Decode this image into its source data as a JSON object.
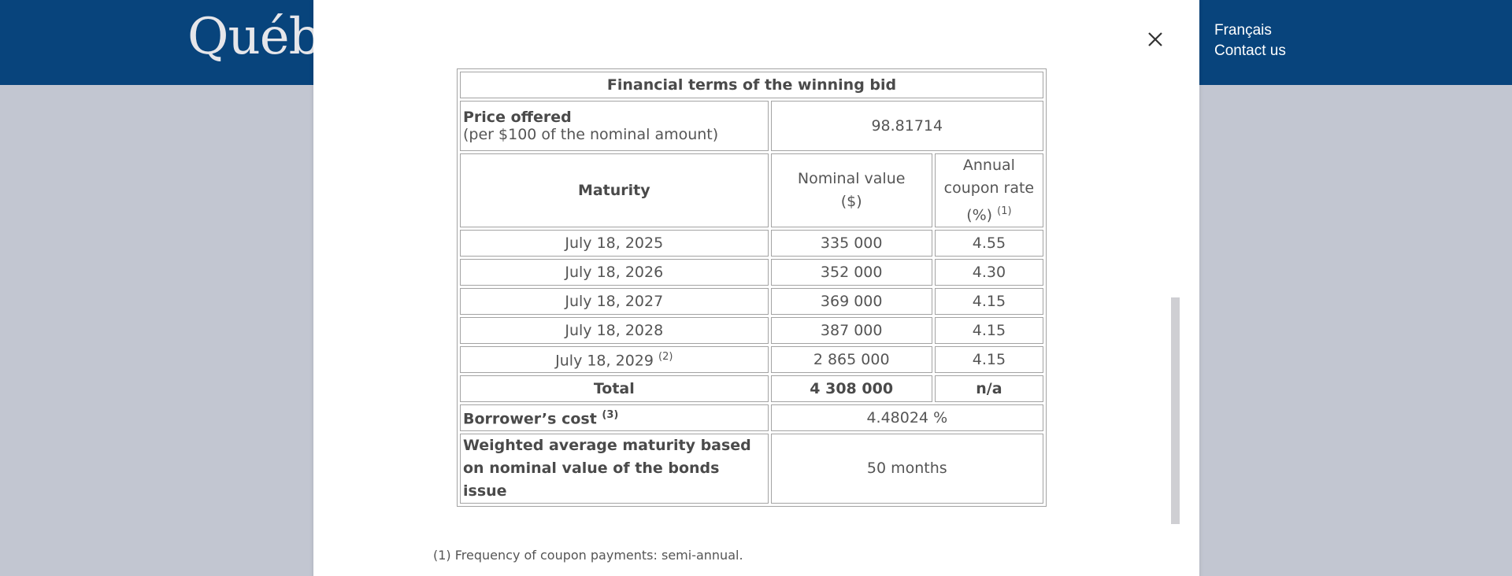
{
  "header": {
    "logo": "Québec",
    "links": [
      {
        "label": "Français"
      },
      {
        "label": "Contact us"
      }
    ]
  },
  "table": {
    "caption": "Financial terms of the winning bid",
    "price": {
      "label": "Price offered",
      "sublabel": "(per $100 of the nominal amount)",
      "value": "98.81714"
    },
    "columns": {
      "maturity": "Maturity",
      "nominal_line1": "Nominal value",
      "nominal_line2": "($)",
      "coupon_line1": "Annual",
      "coupon_line2": "coupon rate",
      "coupon_line3": "(%)",
      "coupon_note": "(1)"
    },
    "rows": [
      {
        "maturity": "July 18, 2025",
        "note": "",
        "nominal": "335 000",
        "rate": "4.55"
      },
      {
        "maturity": "July 18, 2026",
        "note": "",
        "nominal": "352 000",
        "rate": "4.30"
      },
      {
        "maturity": "July 18, 2027",
        "note": "",
        "nominal": "369 000",
        "rate": "4.15"
      },
      {
        "maturity": "July 18, 2028",
        "note": "",
        "nominal": "387 000",
        "rate": "4.15"
      },
      {
        "maturity": "July 18, 2029",
        "note": "(2)",
        "nominal": "2 865 000",
        "rate": "4.15"
      }
    ],
    "total": {
      "label": "Total",
      "nominal": "4 308 000",
      "rate": "n/a"
    },
    "cost": {
      "label": "Borrower’s cost",
      "note": "(3)",
      "value": "4.48024 %"
    },
    "wam": {
      "label": "Weighted average maturity based on nominal value of the bonds issue",
      "value": "50 months"
    }
  },
  "footnotes": [
    "(1) Frequency of coupon payments: semi-annual."
  ]
}
